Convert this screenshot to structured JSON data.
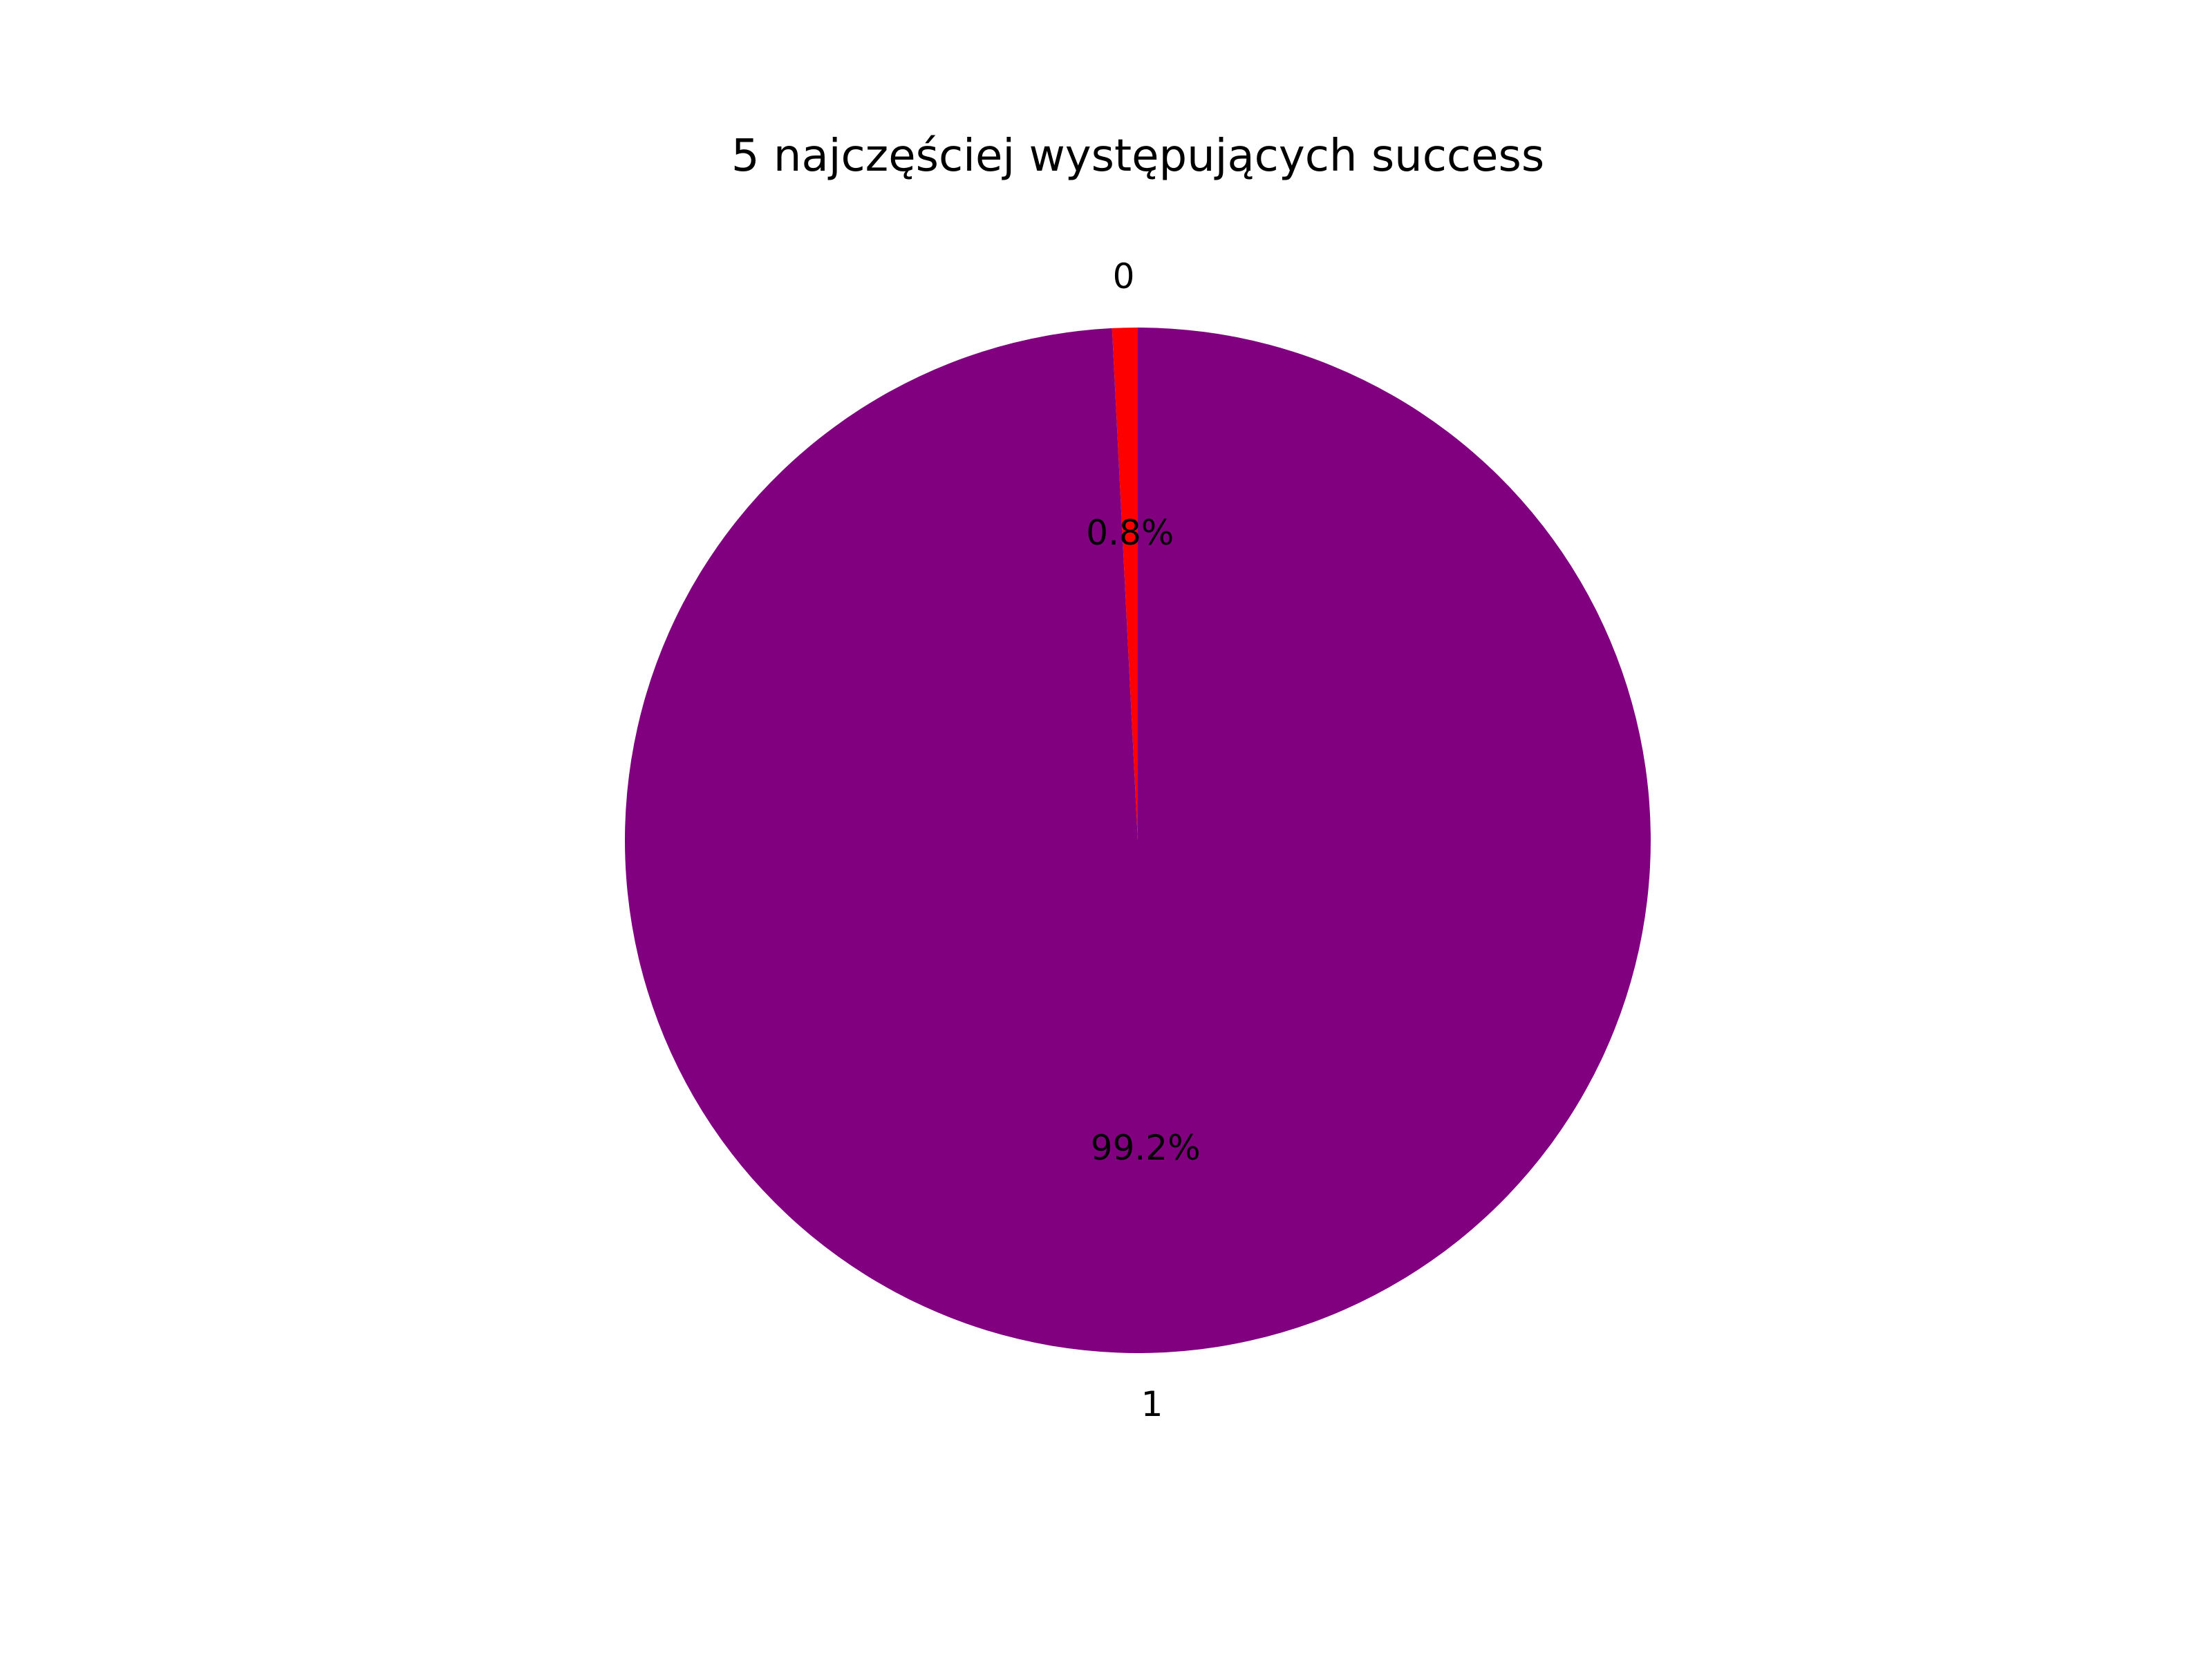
{
  "chart_data": {
    "type": "pie",
    "title": "5 najczęściej występujących success",
    "categories": [
      "0",
      "1"
    ],
    "values": [
      0.8,
      99.2
    ],
    "percent_labels": [
      "0.8%",
      "99.2%"
    ],
    "colors": [
      "#ff0000",
      "#800080"
    ],
    "start_angle_deg": 90,
    "direction": "counterclockwise"
  }
}
